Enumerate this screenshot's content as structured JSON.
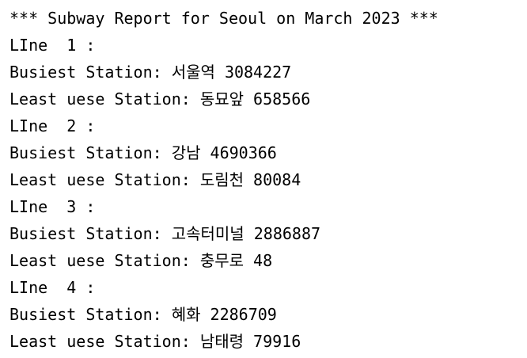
{
  "console": {
    "lines": [
      "*** Subway Report for Seoul on March 2023 ***",
      "LIne  1 :",
      "Busiest Station: 서울역 3084227",
      "Least uese Station: 동묘앞 658566",
      "LIne  2 :",
      "Busiest Station: 강남 4690366",
      "Least uese Station: 도림천 80084",
      "LIne  3 :",
      "Busiest Station: 고속터미널 2886887",
      "Least uese Station: 충무로 48",
      "LIne  4 :",
      "Busiest Station: 혜화 2286709",
      "Least uese Station: 남태령 79916"
    ],
    "text_color": "#000000",
    "background_color": "#ffffff"
  }
}
